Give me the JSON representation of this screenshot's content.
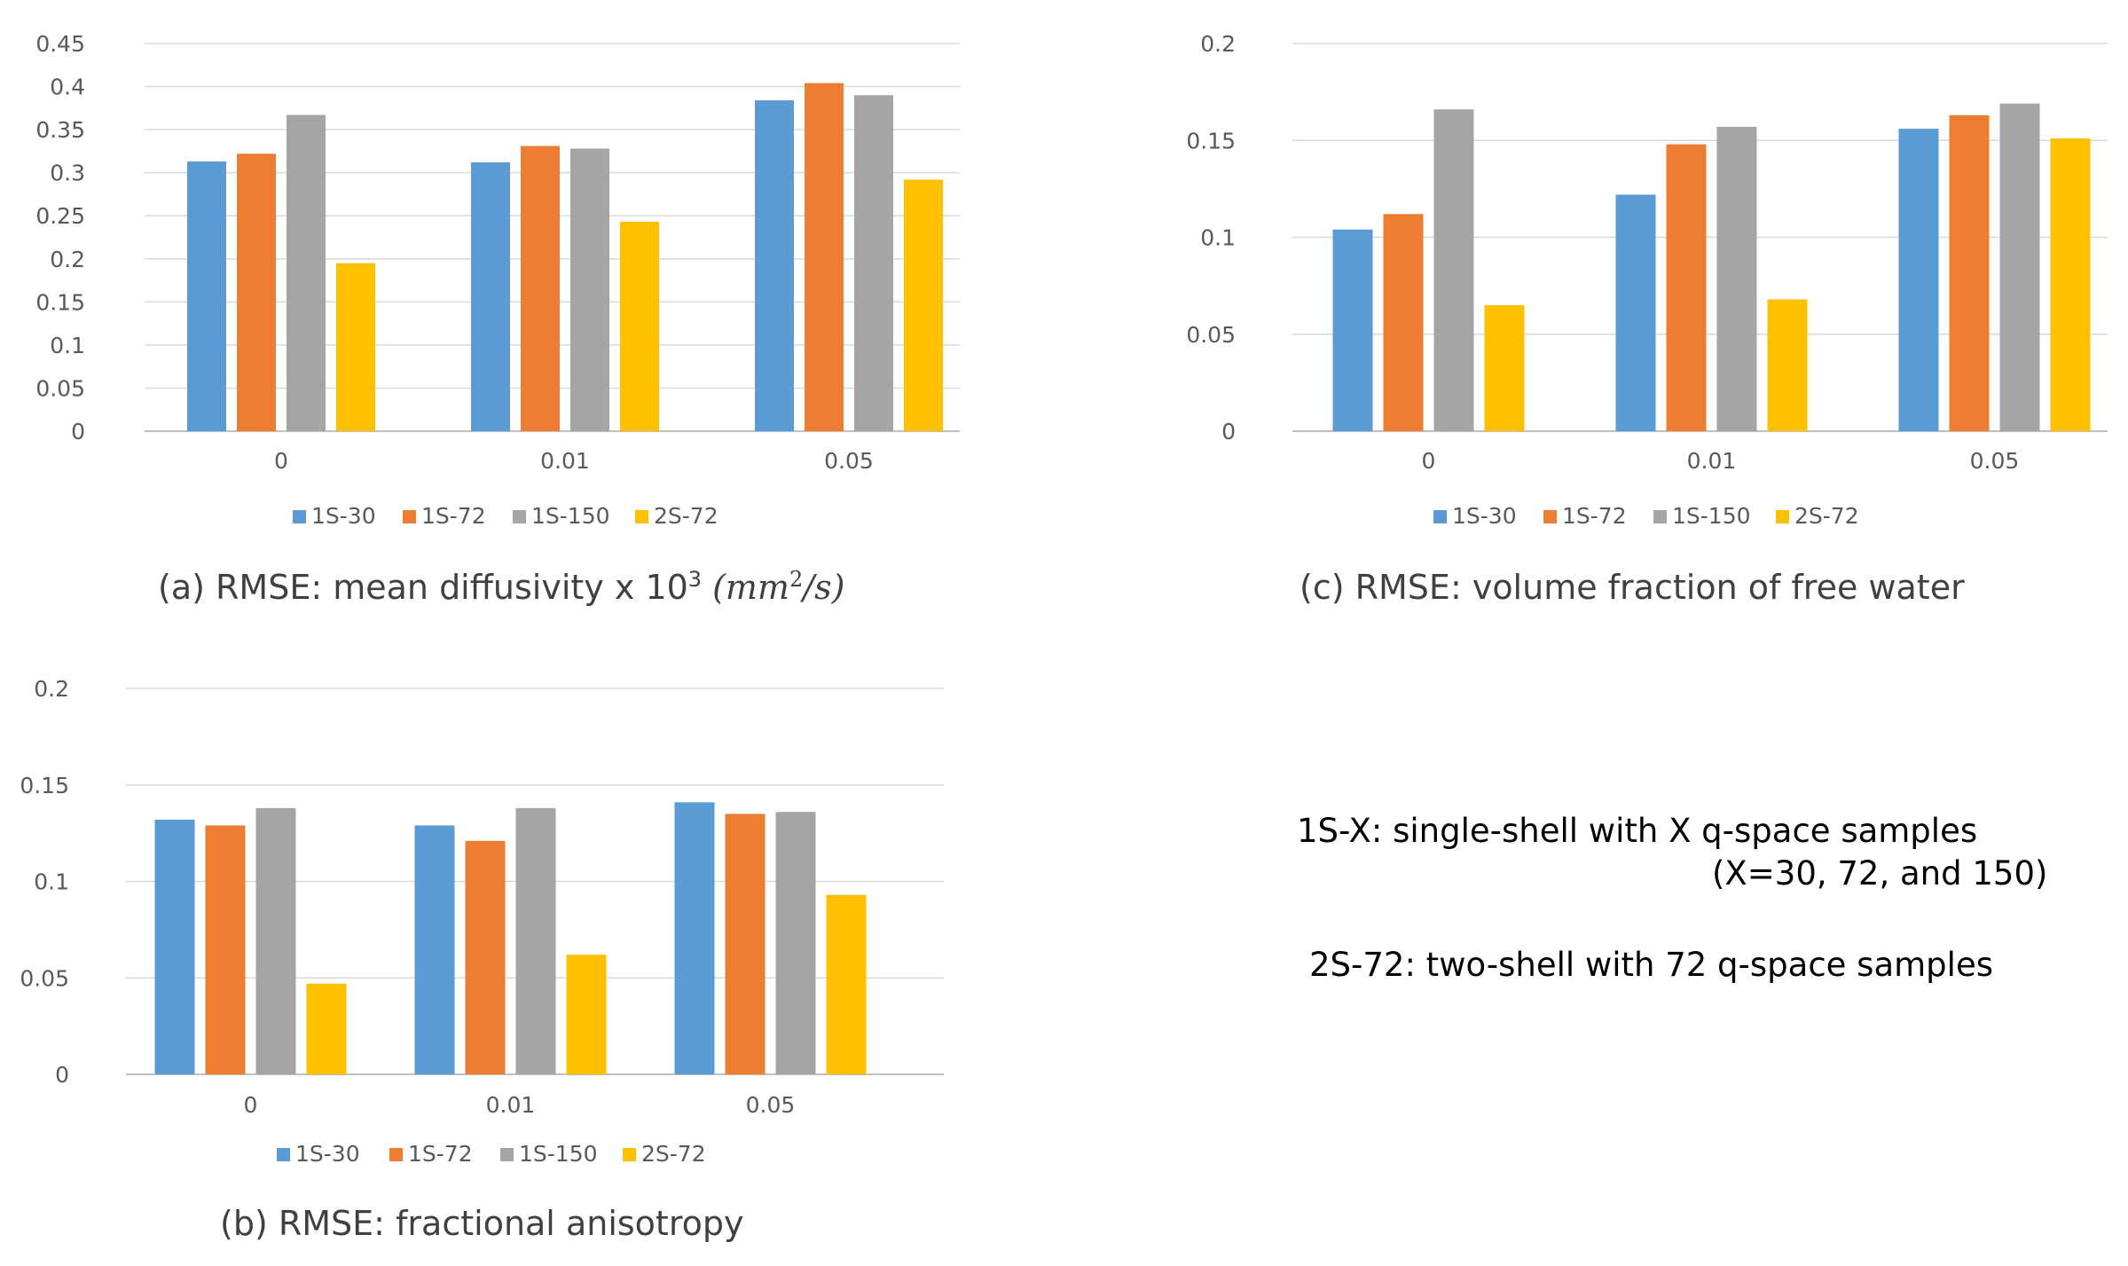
{
  "colors": {
    "1S-30": "#5b9bd5",
    "1S-72": "#ed7d31",
    "1S-150": "#a5a5a5",
    "2S-72": "#ffc000"
  },
  "chart_data": [
    {
      "id": "a",
      "type": "bar",
      "categories": [
        "0",
        "0.01",
        "0.05"
      ],
      "series": [
        {
          "name": "1S-30",
          "values": [
            0.313,
            0.312,
            0.384
          ]
        },
        {
          "name": "1S-72",
          "values": [
            0.322,
            0.331,
            0.404
          ]
        },
        {
          "name": "1S-150",
          "values": [
            0.367,
            0.328,
            0.39
          ]
        },
        {
          "name": "2S-72",
          "values": [
            0.195,
            0.243,
            0.292
          ]
        }
      ],
      "ylim": [
        0,
        0.45
      ],
      "yticks": [
        "0",
        "0.05",
        "0.1",
        "0.15",
        "0.2",
        "0.25",
        "0.3",
        "0.35",
        "0.4",
        "0.45"
      ],
      "legend": [
        "1S-30",
        "1S-72",
        "1S-150",
        "2S-72"
      ],
      "caption_main": "(a) RMSE: mean diffusivity x 10",
      "caption_sup": "3",
      "caption_unit": "(mm",
      "caption_unit_sup": "2",
      "caption_unit_end": "/s)"
    },
    {
      "id": "b",
      "type": "bar",
      "categories": [
        "0",
        "0.01",
        "0.05"
      ],
      "series": [
        {
          "name": "1S-30",
          "values": [
            0.132,
            0.129,
            0.141
          ]
        },
        {
          "name": "1S-72",
          "values": [
            0.129,
            0.121,
            0.135
          ]
        },
        {
          "name": "1S-150",
          "values": [
            0.138,
            0.138,
            0.136
          ]
        },
        {
          "name": "2S-72",
          "values": [
            0.047,
            0.062,
            0.093
          ]
        }
      ],
      "ylim": [
        0,
        0.2
      ],
      "yticks": [
        "0",
        "0.05",
        "0.1",
        "0.15",
        "0.2"
      ],
      "legend": [
        "1S-30",
        "1S-72",
        "1S-150",
        "2S-72"
      ],
      "caption": "(b) RMSE: fractional anisotropy"
    },
    {
      "id": "c",
      "type": "bar",
      "categories": [
        "0",
        "0.01",
        "0.05"
      ],
      "series": [
        {
          "name": "1S-30",
          "values": [
            0.104,
            0.122,
            0.156
          ]
        },
        {
          "name": "1S-72",
          "values": [
            0.112,
            0.148,
            0.163
          ]
        },
        {
          "name": "1S-150",
          "values": [
            0.166,
            0.157,
            0.169
          ]
        },
        {
          "name": "2S-72",
          "values": [
            0.065,
            0.068,
            0.151
          ]
        }
      ],
      "ylim": [
        0,
        0.2
      ],
      "yticks": [
        "0",
        "0.05",
        "0.1",
        "0.15",
        "0.2"
      ],
      "legend": [
        "1S-30",
        "1S-72",
        "1S-150",
        "2S-72"
      ],
      "caption": "(c) RMSE: volume fraction of free water"
    }
  ],
  "notes": {
    "line1": "1S-X: single-shell with X q-space samples",
    "line2": "(X=30, 72, and 150)",
    "line3": "2S-72: two-shell with 72 q-space samples"
  }
}
